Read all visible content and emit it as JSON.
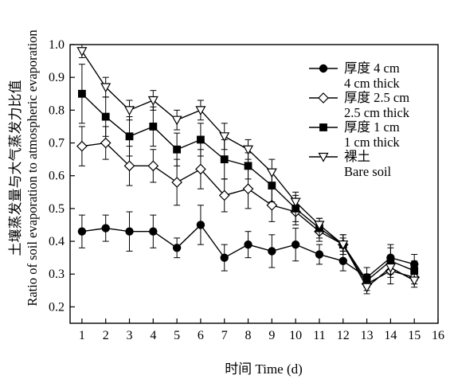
{
  "chart_data": {
    "type": "line",
    "title": "",
    "xlabel": "时间 Time (d)",
    "ylabel": [
      "土壤蒸发量与大气蒸发力比值",
      "Ratio of soil evaporation to atmospheric evaporation"
    ],
    "xlim": [
      0.5,
      16
    ],
    "ylim": [
      0.15,
      1.0
    ],
    "xticks": [
      "1",
      "2",
      "3",
      "4",
      "5",
      "6",
      "7",
      "8",
      "9",
      "10",
      "11",
      "12",
      "13",
      "14",
      "15",
      "16"
    ],
    "yticks": [
      "0.2",
      "0.3",
      "0.4",
      "0.5",
      "0.6",
      "0.7",
      "0.8",
      "0.9",
      "1.0"
    ],
    "legend_position": "top-right",
    "x": [
      1,
      2,
      3,
      4,
      5,
      6,
      7,
      8,
      9,
      10,
      11,
      12,
      13,
      14,
      15
    ],
    "series": [
      {
        "name": [
          "厚度 4 cm",
          "4 cm thick"
        ],
        "marker": "circle-filled",
        "values": [
          0.43,
          0.44,
          0.43,
          0.43,
          0.38,
          0.45,
          0.35,
          0.39,
          0.37,
          0.39,
          0.36,
          0.34,
          0.29,
          0.35,
          0.33
        ],
        "errors": [
          0.05,
          0.04,
          0.06,
          0.05,
          0.03,
          0.06,
          0.04,
          0.04,
          0.05,
          0.05,
          0.03,
          0.03,
          0.03,
          0.04,
          0.03
        ]
      },
      {
        "name": [
          "厚度 2.5 cm",
          "2.5 cm thick"
        ],
        "marker": "diamond-open",
        "values": [
          0.69,
          0.7,
          0.63,
          0.63,
          0.58,
          0.62,
          0.54,
          0.56,
          0.51,
          0.49,
          0.43,
          0.39,
          0.27,
          0.31,
          0.29
        ],
        "errors": [
          0.06,
          0.05,
          0.06,
          0.05,
          0.07,
          0.06,
          0.05,
          0.06,
          0.05,
          0.04,
          0.03,
          0.03,
          0.02,
          0.04,
          0.02
        ]
      },
      {
        "name": [
          "厚度 1 cm",
          "1 cm thick"
        ],
        "marker": "square-filled",
        "values": [
          0.85,
          0.78,
          0.72,
          0.75,
          0.68,
          0.71,
          0.65,
          0.63,
          0.57,
          0.5,
          0.44,
          0.39,
          0.28,
          0.34,
          0.31
        ],
        "errors": [
          0.09,
          0.06,
          0.06,
          0.06,
          0.05,
          0.05,
          0.06,
          0.04,
          0.05,
          0.04,
          0.03,
          0.03,
          0.02,
          0.04,
          0.03
        ]
      },
      {
        "name": [
          "裸土",
          "Bare soil"
        ],
        "marker": "triangle-down-open",
        "values": [
          0.98,
          0.87,
          0.8,
          0.83,
          0.77,
          0.8,
          0.72,
          0.68,
          0.61,
          0.52,
          0.45,
          0.39,
          0.26,
          0.32,
          0.28
        ],
        "errors": [
          0.02,
          0.03,
          0.03,
          0.03,
          0.03,
          0.03,
          0.04,
          0.03,
          0.04,
          0.03,
          0.02,
          0.02,
          0.02,
          0.03,
          0.02
        ]
      }
    ]
  }
}
